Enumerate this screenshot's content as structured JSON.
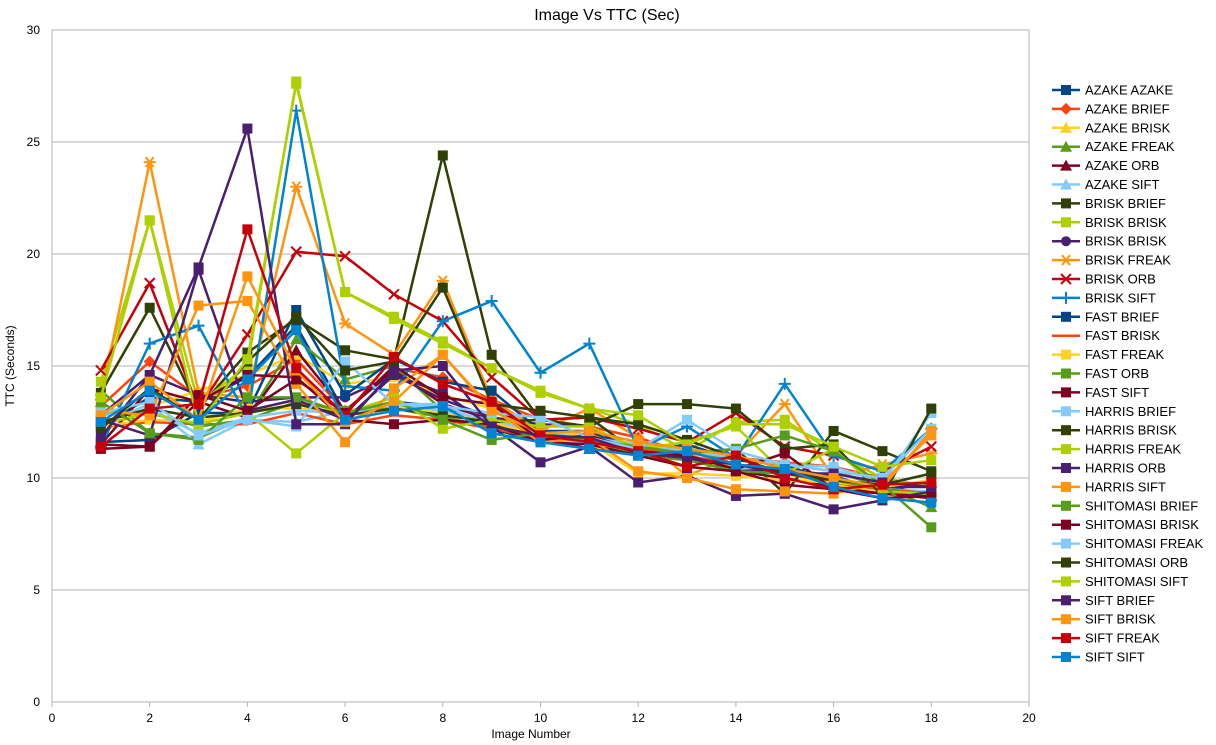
{
  "chart_data": {
    "type": "line",
    "title": "Image Vs TTC (Sec)",
    "xlabel": "Image Number",
    "ylabel": "TTC (Seconds)",
    "xlim": [
      0,
      20
    ],
    "ylim": [
      0,
      30
    ],
    "xticks": [
      "0",
      "2",
      "4",
      "6",
      "8",
      "10",
      "12",
      "14",
      "16",
      "18",
      "20"
    ],
    "yticks": [
      "0",
      "5",
      "10",
      "15",
      "20",
      "25",
      "30"
    ],
    "grid": "horizontal",
    "legend": "right",
    "x": [
      1,
      2,
      3,
      4,
      5,
      6,
      7,
      8,
      9,
      10,
      11,
      12,
      13,
      14,
      15,
      16,
      17,
      18
    ],
    "series": [
      {
        "name": "AZAKE AZAKE",
        "color": "#004586",
        "marker": "square",
        "values": [
          12.3,
          13.6,
          13.4,
          14.5,
          16.8,
          12.9,
          13.4,
          13.2,
          12.2,
          11.6,
          12.0,
          11.1,
          11.3,
          10.6,
          10.4,
          10.1,
          9.4,
          9.8
        ]
      },
      {
        "name": "AZAKE BRIEF",
        "color": "#ff420e",
        "marker": "diamond",
        "values": [
          13.2,
          15.2,
          13.6,
          14.1,
          15.3,
          13.0,
          14.9,
          14.5,
          13.5,
          12.6,
          12.3,
          11.8,
          11.1,
          10.9,
          10.7,
          10.5,
          10.0,
          9.6
        ]
      },
      {
        "name": "AZAKE BRISK",
        "color": "#ffd320",
        "marker": "triangle",
        "values": [
          12.0,
          13.2,
          13.9,
          14.6,
          15.5,
          14.2,
          14.5,
          13.7,
          13.1,
          12.1,
          11.9,
          11.5,
          11.0,
          10.5,
          10.2,
          9.7,
          9.4,
          9.4
        ]
      },
      {
        "name": "AZAKE FREAK",
        "color": "#579d1c",
        "marker": "triangle",
        "values": [
          13.9,
          12.0,
          11.8,
          12.7,
          16.2,
          14.4,
          15.0,
          13.0,
          12.4,
          11.9,
          11.6,
          11.3,
          11.2,
          10.8,
          10.6,
          10.3,
          9.6,
          8.7
        ]
      },
      {
        "name": "AZAKE ORB",
        "color": "#7e0021",
        "marker": "triangle",
        "values": [
          11.5,
          14.0,
          13.4,
          12.7,
          15.7,
          13.0,
          14.8,
          13.3,
          12.6,
          11.8,
          11.3,
          11.3,
          11.0,
          10.3,
          10.0,
          9.6,
          9.3,
          9.2
        ]
      },
      {
        "name": "AZAKE SIFT",
        "color": "#83caff",
        "marker": "triangle",
        "values": [
          12.4,
          13.3,
          11.5,
          12.6,
          12.5,
          13.0,
          13.3,
          13.3,
          12.3,
          11.7,
          11.6,
          11.2,
          10.8,
          10.4,
          10.4,
          9.9,
          9.5,
          9.4
        ]
      },
      {
        "name": "BRISK BRIEF",
        "color": "#314004",
        "marker": "square",
        "values": [
          13.8,
          17.6,
          13.1,
          15.6,
          17.1,
          15.7,
          15.3,
          24.4,
          15.5,
          12.6,
          12.7,
          11.1,
          11.1,
          11.3,
          9.3,
          12.1,
          11.2,
          10.3
        ]
      },
      {
        "name": "BRISK BRISK",
        "color": "#aecf00",
        "marker": "square",
        "values": [
          14.3,
          21.5,
          13.3,
          15.0,
          27.7,
          18.3,
          17.2,
          16.1,
          14.9,
          13.9,
          13.1,
          12.4,
          11.2,
          12.5,
          12.6,
          11.1,
          10.0,
          9.6
        ]
      },
      {
        "name": "BRISK BRISK",
        "color": "#4b1f6f",
        "marker": "circle",
        "values": [
          12.8,
          14.6,
          13.7,
          13.4,
          13.6,
          13.6,
          14.6,
          13.5,
          12.7,
          12.4,
          12.3,
          11.1,
          10.9,
          10.3,
          10.4,
          9.8,
          9.6,
          9.6
        ]
      },
      {
        "name": "BRISK FREAK",
        "color": "#ff950e",
        "marker": "asterisk",
        "values": [
          13.5,
          24.1,
          13.8,
          13.6,
          23.0,
          16.9,
          15.5,
          18.8,
          13.5,
          12.1,
          13.1,
          11.8,
          10.1,
          11.0,
          13.3,
          10.0,
          10.6,
          11.1
        ]
      },
      {
        "name": "BRISK ORB",
        "color": "#c5000b",
        "marker": "x",
        "values": [
          14.8,
          18.7,
          13.1,
          16.4,
          20.1,
          19.9,
          18.2,
          17.0,
          14.5,
          12.6,
          12.7,
          12.2,
          11.6,
          12.9,
          11.4,
          11.0,
          10.3,
          11.4
        ]
      },
      {
        "name": "BRISK SIFT",
        "color": "#0084d1",
        "marker": "plus",
        "values": [
          11.4,
          16.0,
          16.8,
          12.7,
          26.4,
          14.1,
          13.9,
          17.0,
          17.9,
          14.7,
          16.0,
          11.3,
          12.3,
          10.9,
          14.2,
          11.0,
          10.3,
          12.2
        ]
      },
      {
        "name": "FAST BRIEF",
        "color": "#004586",
        "marker": "square",
        "values": [
          11.6,
          11.7,
          12.9,
          12.9,
          17.5,
          13.7,
          15.3,
          14.3,
          13.9,
          12.1,
          12.1,
          11.1,
          11.5,
          10.8,
          10.6,
          9.8,
          9.5,
          9.3
        ]
      },
      {
        "name": "FAST BRISK",
        "color": "#ff420e",
        "marker": "none",
        "values": [
          12.3,
          12.5,
          12.4,
          12.4,
          12.9,
          12.4,
          12.8,
          12.6,
          12.2,
          11.8,
          11.7,
          11.3,
          11.0,
          10.6,
          10.2,
          9.8,
          9.5,
          9.3
        ]
      },
      {
        "name": "FAST FREAK",
        "color": "#ffd320",
        "marker": "square",
        "values": [
          12.3,
          12.6,
          12.5,
          13.1,
          13.1,
          13.0,
          13.2,
          12.9,
          12.5,
          11.9,
          11.6,
          10.2,
          10.2,
          10.1,
          9.9,
          9.8,
          9.6,
          9.9
        ]
      },
      {
        "name": "FAST ORB",
        "color": "#579d1c",
        "marker": "square",
        "values": [
          12.9,
          12.9,
          12.3,
          12.6,
          13.4,
          13.0,
          13.1,
          12.7,
          12.3,
          11.9,
          11.7,
          11.0,
          10.8,
          10.3,
          10.2,
          9.9,
          9.5,
          9.2
        ]
      },
      {
        "name": "FAST SIFT",
        "color": "#7e0021",
        "marker": "square",
        "values": [
          11.3,
          11.4,
          13.4,
          14.6,
          14.5,
          12.6,
          12.4,
          12.6,
          12.4,
          11.6,
          11.5,
          11.0,
          10.5,
          10.3,
          9.7,
          9.5,
          9.3,
          9.1
        ]
      },
      {
        "name": "HARRIS BRIEF",
        "color": "#83caff",
        "marker": "square",
        "values": [
          12.8,
          13.0,
          12.0,
          12.7,
          13.0,
          12.9,
          13.3,
          13.0,
          12.6,
          12.0,
          11.8,
          11.5,
          11.2,
          10.9,
          10.6,
          10.5,
          9.8,
          12.9
        ]
      },
      {
        "name": "HARRIS BRISK",
        "color": "#314004",
        "marker": "square",
        "values": [
          12.5,
          13.1,
          12.7,
          12.9,
          13.3,
          12.8,
          13.1,
          12.8,
          12.5,
          12.6,
          12.3,
          13.3,
          13.3,
          13.1,
          11.3,
          11.5,
          9.2,
          13.1
        ]
      },
      {
        "name": "HARRIS FREAK",
        "color": "#aecf00",
        "marker": "square",
        "values": [
          12.4,
          12.9,
          12.4,
          12.9,
          11.1,
          12.9,
          13.6,
          12.2,
          12.6,
          12.3,
          12.3,
          11.3,
          11.6,
          12.3,
          10.2,
          11.3,
          9.4,
          9.3
        ]
      },
      {
        "name": "HARRIS ORB",
        "color": "#4b1f6f",
        "marker": "square",
        "values": [
          12.6,
          11.9,
          19.3,
          13.0,
          13.5,
          12.6,
          14.6,
          13.8,
          12.3,
          10.7,
          11.4,
          9.8,
          10.1,
          9.2,
          9.3,
          8.6,
          9.0,
          9.4
        ]
      },
      {
        "name": "HARRIS SIFT",
        "color": "#ff950e",
        "marker": "square",
        "values": [
          13.0,
          12.8,
          17.7,
          17.9,
          14.2,
          11.6,
          14.0,
          15.5,
          13.1,
          11.6,
          11.8,
          10.3,
          10.0,
          9.5,
          9.4,
          9.3,
          9.8,
          11.9
        ]
      },
      {
        "name": "SHITOMASI BRIEF",
        "color": "#579d1c",
        "marker": "square",
        "values": [
          13.4,
          12.0,
          11.7,
          13.6,
          13.6,
          12.9,
          13.4,
          12.6,
          11.7,
          12.0,
          11.7,
          11.4,
          11.1,
          11.3,
          11.9,
          11.2,
          9.7,
          7.8
        ]
      },
      {
        "name": "SHITOMASI BRISK",
        "color": "#7e0021",
        "marker": "square",
        "values": [
          11.5,
          11.4,
          13.7,
          13.0,
          14.4,
          12.9,
          15.0,
          13.6,
          13.3,
          11.7,
          11.9,
          11.2,
          11.0,
          10.4,
          11.1,
          9.5,
          9.1,
          9.2
        ]
      },
      {
        "name": "SHITOMASI FREAK",
        "color": "#83caff",
        "marker": "square",
        "values": [
          12.9,
          13.4,
          11.9,
          12.6,
          12.3,
          15.2,
          13.3,
          13.2,
          12.9,
          12.7,
          11.8,
          11.3,
          12.6,
          11.2,
          10.6,
          10.3,
          10.0,
          12.2
        ]
      },
      {
        "name": "SHITOMASI ORB",
        "color": "#314004",
        "marker": "square",
        "values": [
          12.2,
          14.0,
          12.6,
          15.2,
          17.2,
          14.8,
          15.2,
          18.5,
          13.3,
          13.0,
          12.7,
          12.4,
          11.7,
          10.9,
          10.2,
          9.9,
          9.7,
          10.2
        ]
      },
      {
        "name": "SHITOMASI SIFT",
        "color": "#aecf00",
        "marker": "square",
        "values": [
          13.6,
          21.5,
          12.4,
          15.3,
          27.6,
          18.3,
          17.1,
          16.0,
          14.9,
          13.8,
          13.1,
          12.8,
          11.5,
          12.4,
          12.4,
          11.4,
          10.5,
          10.8
        ]
      },
      {
        "name": "SIFT BRIEF",
        "color": "#4b1f6f",
        "marker": "square",
        "values": [
          11.8,
          14.6,
          19.4,
          25.6,
          12.4,
          12.4,
          14.8,
          15.0,
          12.3,
          11.9,
          11.8,
          11.1,
          10.9,
          10.6,
          10.2,
          10.2,
          9.8,
          9.6
        ]
      },
      {
        "name": "SIFT BRISK",
        "color": "#ff950e",
        "marker": "square",
        "values": [
          12.8,
          14.3,
          12.6,
          19.0,
          14.8,
          12.5,
          13.4,
          15.5,
          13.0,
          12.0,
          12.1,
          11.6,
          11.3,
          11.0,
          10.4,
          10.0,
          9.6,
          12.1
        ]
      },
      {
        "name": "SIFT FREAK",
        "color": "#c5000b",
        "marker": "square",
        "values": [
          11.4,
          13.1,
          13.3,
          21.1,
          14.9,
          12.8,
          15.4,
          14.2,
          13.4,
          11.9,
          11.6,
          11.2,
          10.5,
          11.0,
          10.0,
          9.5,
          9.7,
          9.8
        ]
      },
      {
        "name": "SIFT SIFT",
        "color": "#0084d1",
        "marker": "square",
        "values": [
          12.5,
          13.9,
          12.6,
          14.4,
          16.6,
          12.6,
          13.0,
          13.2,
          12.0,
          11.6,
          11.3,
          11.0,
          11.2,
          10.6,
          10.4,
          9.6,
          9.1,
          8.9
        ]
      }
    ]
  }
}
